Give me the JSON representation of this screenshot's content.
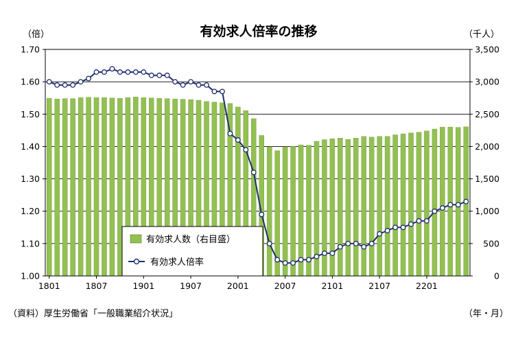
{
  "chart_data": {
    "type": "bar+line",
    "title": "有効求人倍率の推移",
    "left_axis_unit": "（倍）",
    "right_axis_unit": "（千人）",
    "x_unit": "（年・月）",
    "source": "（資料）厚生労働省「一般職業紹介状況」",
    "left_ylim": [
      1.0,
      1.7
    ],
    "left_ticks": [
      "1.00",
      "1.10",
      "1.20",
      "1.30",
      "1.40",
      "1.50",
      "1.60",
      "1.70"
    ],
    "right_ylim": [
      0,
      3500
    ],
    "right_ticks": [
      "0",
      "500",
      "1,000",
      "1,500",
      "2,000",
      "2,500",
      "3,000",
      "3,500"
    ],
    "x_tick_labels": [
      {
        "index": 0,
        "label": "1801"
      },
      {
        "index": 6,
        "label": "1807"
      },
      {
        "index": 12,
        "label": "1901"
      },
      {
        "index": 18,
        "label": "1907"
      },
      {
        "index": 24,
        "label": "2001"
      },
      {
        "index": 30,
        "label": "2007"
      },
      {
        "index": 36,
        "label": "2101"
      },
      {
        "index": 42,
        "label": "2107"
      },
      {
        "index": 48,
        "label": "2201"
      }
    ],
    "grid": "horizontal",
    "legend_position": "bottom-center",
    "series": [
      {
        "name": "有効求人数（右目盛）",
        "type": "bar",
        "axis": "right",
        "color": "#92c052",
        "values": [
          2745,
          2735,
          2740,
          2740,
          2755,
          2760,
          2755,
          2755,
          2750,
          2745,
          2755,
          2765,
          2755,
          2750,
          2745,
          2740,
          2735,
          2730,
          2725,
          2715,
          2695,
          2685,
          2675,
          2665,
          2610,
          2555,
          2430,
          2170,
          1995,
          1935,
          1995,
          2000,
          2025,
          2020,
          2080,
          2105,
          2120,
          2130,
          2110,
          2130,
          2155,
          2145,
          2155,
          2155,
          2180,
          2195,
          2210,
          2220,
          2240,
          2270,
          2300,
          2300,
          2295,
          2305
        ]
      },
      {
        "name": "有効求人倍率",
        "type": "line",
        "axis": "left",
        "color": "#1f2d6b",
        "values": [
          1.6,
          1.59,
          1.59,
          1.59,
          1.6,
          1.61,
          1.63,
          1.63,
          1.64,
          1.63,
          1.63,
          1.63,
          1.63,
          1.62,
          1.62,
          1.62,
          1.6,
          1.59,
          1.6,
          1.59,
          1.59,
          1.57,
          1.57,
          1.44,
          1.42,
          1.39,
          1.32,
          1.19,
          1.1,
          1.05,
          1.04,
          1.04,
          1.05,
          1.05,
          1.06,
          1.07,
          1.07,
          1.09,
          1.1,
          1.1,
          1.09,
          1.1,
          1.13,
          1.14,
          1.15,
          1.15,
          1.16,
          1.17,
          1.17,
          1.2,
          1.21,
          1.22,
          1.22,
          1.23
        ]
      }
    ]
  }
}
